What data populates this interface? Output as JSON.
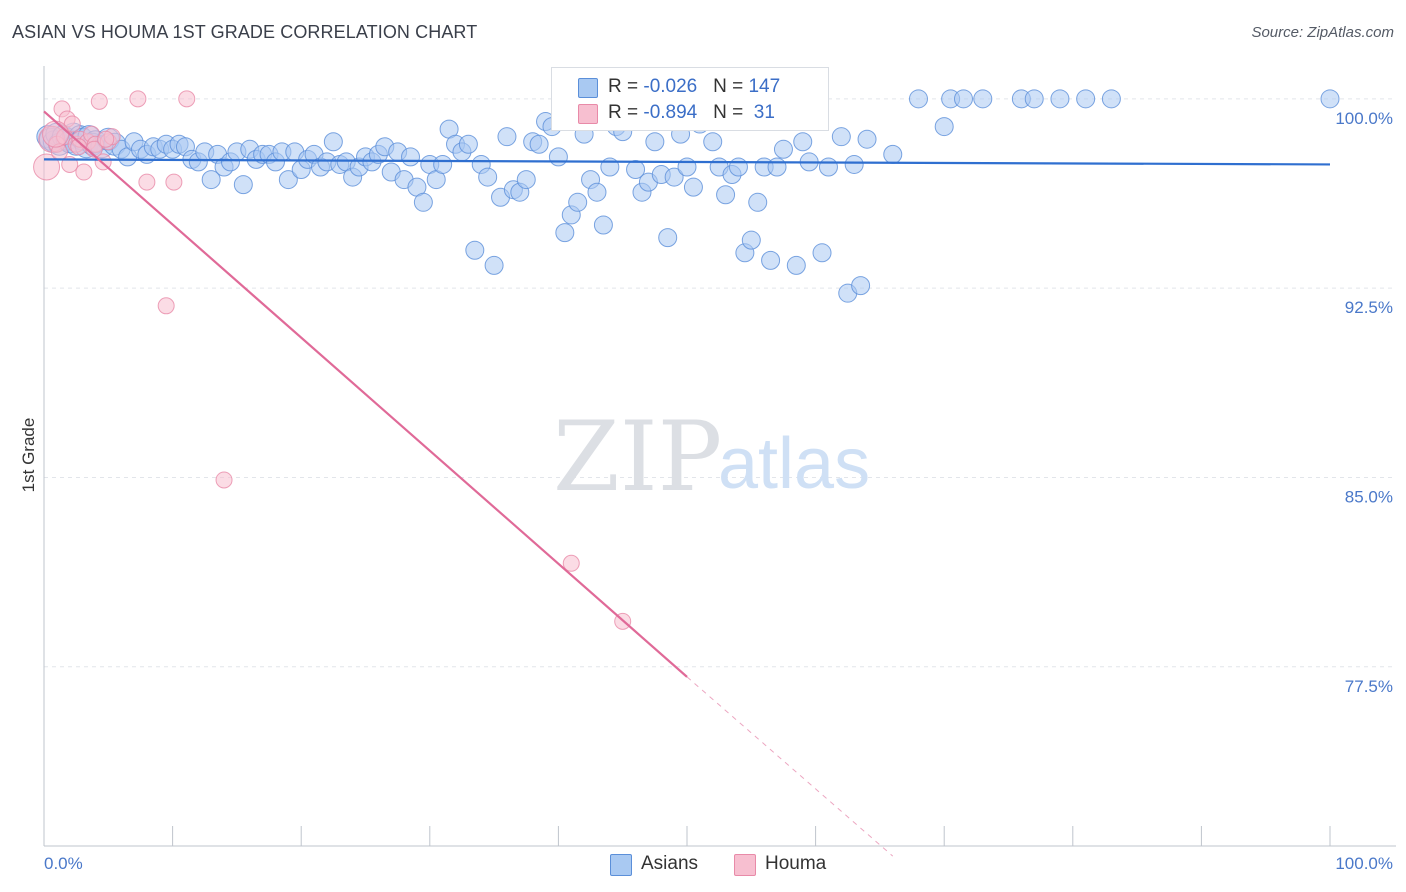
{
  "title": "ASIAN VS HOUMA 1ST GRADE CORRELATION CHART",
  "source": "Source: ZipAtlas.com",
  "watermark": {
    "left": "ZIP",
    "right": "atlas"
  },
  "colors": {
    "asians_fill": "#a9c9f2",
    "asians_stroke": "#5b8fd9",
    "asians_line": "#2f6fd0",
    "houma_fill": "#f7bfd0",
    "houma_stroke": "#e88aa8",
    "houma_line": "#e06a98",
    "tick_text": "#4a78c9",
    "grid": "#e2e5ea"
  },
  "legend": {
    "r_label": "R = ",
    "n_label": "N = ",
    "asians": {
      "r": "-0.026",
      "n": "147"
    },
    "houma": {
      "r": "-0.894",
      "n": " 31"
    }
  },
  "bottom_legend": {
    "asians": "Asians",
    "houma": "Houma"
  },
  "chart_data": {
    "type": "scatter",
    "title": "ASIAN VS HOUMA 1ST GRADE CORRELATION CHART",
    "xlabel": "",
    "ylabel": "1st Grade",
    "xlim": [
      0,
      100
    ],
    "ylim": [
      70.4,
      101.3
    ],
    "x_tick_labels": [
      "0.0%",
      "100.0%"
    ],
    "y_ticks": [
      100.0,
      92.5,
      85.0,
      77.5
    ],
    "y_tick_labels": [
      "100.0%",
      "92.5%",
      "85.0%",
      "77.5%"
    ],
    "grid": true,
    "legend_position": "top-center",
    "series": [
      {
        "name": "Asians",
        "trend": {
          "x": [
            0,
            100
          ],
          "y": [
            97.6,
            97.4
          ]
        },
        "points": [
          [
            0.3,
            98.5
          ],
          [
            0.5,
            98.4
          ],
          [
            0.8,
            98.3
          ],
          [
            1.0,
            98.6
          ],
          [
            1.2,
            98.2
          ],
          [
            1.5,
            98.5
          ],
          [
            1.8,
            98.4
          ],
          [
            2.0,
            98.3
          ],
          [
            2.3,
            98.6
          ],
          [
            2.5,
            98.2
          ],
          [
            2.8,
            98.5
          ],
          [
            3.0,
            98.4
          ],
          [
            3.3,
            98.1
          ],
          [
            3.5,
            98.5
          ],
          [
            3.8,
            98.2
          ],
          [
            4.0,
            98.3
          ],
          [
            4.5,
            98.1
          ],
          [
            5.0,
            98.4
          ],
          [
            5.5,
            98.2
          ],
          [
            6.0,
            98.0
          ],
          [
            6.5,
            97.7
          ],
          [
            7.0,
            98.3
          ],
          [
            7.5,
            98.0
          ],
          [
            8.0,
            97.8
          ],
          [
            8.5,
            98.1
          ],
          [
            9.0,
            98.0
          ],
          [
            9.5,
            98.2
          ],
          [
            10.0,
            98.0
          ],
          [
            10.5,
            98.2
          ],
          [
            11.0,
            98.1
          ],
          [
            11.5,
            97.6
          ],
          [
            12.0,
            97.5
          ],
          [
            12.5,
            97.9
          ],
          [
            13.0,
            96.8
          ],
          [
            13.5,
            97.8
          ],
          [
            14.0,
            97.3
          ],
          [
            14.5,
            97.5
          ],
          [
            15.0,
            97.9
          ],
          [
            15.5,
            96.6
          ],
          [
            16.0,
            98.0
          ],
          [
            16.5,
            97.6
          ],
          [
            17.0,
            97.8
          ],
          [
            17.5,
            97.8
          ],
          [
            18.0,
            97.5
          ],
          [
            18.5,
            97.9
          ],
          [
            19.0,
            96.8
          ],
          [
            19.5,
            97.9
          ],
          [
            20.0,
            97.2
          ],
          [
            20.5,
            97.6
          ],
          [
            21.0,
            97.8
          ],
          [
            21.5,
            97.3
          ],
          [
            22.0,
            97.5
          ],
          [
            22.5,
            98.3
          ],
          [
            23.0,
            97.4
          ],
          [
            23.5,
            97.5
          ],
          [
            24.0,
            96.9
          ],
          [
            24.5,
            97.3
          ],
          [
            25.0,
            97.7
          ],
          [
            25.5,
            97.5
          ],
          [
            26.0,
            97.8
          ],
          [
            26.5,
            98.1
          ],
          [
            27.0,
            97.1
          ],
          [
            27.5,
            97.9
          ],
          [
            28.0,
            96.8
          ],
          [
            28.5,
            97.7
          ],
          [
            29.0,
            96.5
          ],
          [
            29.5,
            95.9
          ],
          [
            30.0,
            97.4
          ],
          [
            30.5,
            96.8
          ],
          [
            31.0,
            97.4
          ],
          [
            31.5,
            98.8
          ],
          [
            32.0,
            98.2
          ],
          [
            32.5,
            97.9
          ],
          [
            33.0,
            98.2
          ],
          [
            33.5,
            94.0
          ],
          [
            34.0,
            97.4
          ],
          [
            34.5,
            96.9
          ],
          [
            35.0,
            93.4
          ],
          [
            35.5,
            96.1
          ],
          [
            36.0,
            98.5
          ],
          [
            36.5,
            96.4
          ],
          [
            37.0,
            96.3
          ],
          [
            37.5,
            96.8
          ],
          [
            38.0,
            98.3
          ],
          [
            38.5,
            98.2
          ],
          [
            39.0,
            99.1
          ],
          [
            39.5,
            98.9
          ],
          [
            40.0,
            97.7
          ],
          [
            40.5,
            94.7
          ],
          [
            41.0,
            95.4
          ],
          [
            41.5,
            95.9
          ],
          [
            42.0,
            98.6
          ],
          [
            42.5,
            96.8
          ],
          [
            43.0,
            96.3
          ],
          [
            43.5,
            95.0
          ],
          [
            44.0,
            97.3
          ],
          [
            44.5,
            98.9
          ],
          [
            45.0,
            98.7
          ],
          [
            45.5,
            99.2
          ],
          [
            46.0,
            97.2
          ],
          [
            46.5,
            96.3
          ],
          [
            47.0,
            96.7
          ],
          [
            47.5,
            98.3
          ],
          [
            48.0,
            97.0
          ],
          [
            48.5,
            94.5
          ],
          [
            49.0,
            96.9
          ],
          [
            49.5,
            98.6
          ],
          [
            50.0,
            97.3
          ],
          [
            50.5,
            96.5
          ],
          [
            51.0,
            99.0
          ],
          [
            51.5,
            99.2
          ],
          [
            52.0,
            98.3
          ],
          [
            52.5,
            97.3
          ],
          [
            53.0,
            96.2
          ],
          [
            53.5,
            97.0
          ],
          [
            54.0,
            97.3
          ],
          [
            54.5,
            93.9
          ],
          [
            55.0,
            94.4
          ],
          [
            55.5,
            95.9
          ],
          [
            56.0,
            97.3
          ],
          [
            56.5,
            93.6
          ],
          [
            57.0,
            97.3
          ],
          [
            57.5,
            98.0
          ],
          [
            58.0,
            99.4
          ],
          [
            58.5,
            93.4
          ],
          [
            59.0,
            98.3
          ],
          [
            59.5,
            97.5
          ],
          [
            60.0,
            99.4
          ],
          [
            60.5,
            93.9
          ],
          [
            61.0,
            97.3
          ],
          [
            62.0,
            98.5
          ],
          [
            62.5,
            92.3
          ],
          [
            63.0,
            97.4
          ],
          [
            63.5,
            92.6
          ],
          [
            64.0,
            98.4
          ],
          [
            66.0,
            97.8
          ],
          [
            68.0,
            100.0
          ],
          [
            70.0,
            98.9
          ],
          [
            70.5,
            100.0
          ],
          [
            71.5,
            100.0
          ],
          [
            73.0,
            100.0
          ],
          [
            76.0,
            100.0
          ],
          [
            77.0,
            100.0
          ],
          [
            79.0,
            100.0
          ],
          [
            81.0,
            100.0
          ],
          [
            83.0,
            100.0
          ],
          [
            100.0,
            100.0
          ]
        ]
      },
      {
        "name": "Houma",
        "trend": {
          "x": [
            0,
            50
          ],
          "y": [
            99.5,
            77.1
          ]
        },
        "trend_extension": {
          "x": [
            50,
            66
          ],
          "y": [
            77.1,
            70.0
          ]
        },
        "points": [
          [
            0.2,
            97.3
          ],
          [
            0.6,
            98.4
          ],
          [
            1.0,
            98.2
          ],
          [
            1.4,
            99.6
          ],
          [
            1.6,
            98.5
          ],
          [
            1.8,
            99.2
          ],
          [
            2.0,
            97.4
          ],
          [
            2.2,
            99.0
          ],
          [
            2.5,
            98.2
          ],
          [
            2.8,
            98.4
          ],
          [
            3.1,
            97.1
          ],
          [
            3.4,
            98.3
          ],
          [
            3.7,
            98.6
          ],
          [
            4.0,
            98.2
          ],
          [
            4.3,
            99.9
          ],
          [
            4.6,
            97.5
          ],
          [
            5.0,
            98.3
          ],
          [
            5.3,
            98.5
          ],
          [
            7.3,
            100.0
          ],
          [
            8.0,
            96.7
          ],
          [
            9.5,
            91.8
          ],
          [
            10.1,
            96.7
          ],
          [
            11.1,
            100.0
          ],
          [
            14.0,
            84.9
          ],
          [
            41.0,
            81.6
          ],
          [
            45.0,
            79.3
          ],
          [
            2.7,
            98.1
          ],
          [
            3.9,
            98.0
          ],
          [
            1.2,
            97.9
          ],
          [
            4.8,
            98.4
          ],
          [
            0.9,
            98.6
          ]
        ]
      }
    ]
  }
}
